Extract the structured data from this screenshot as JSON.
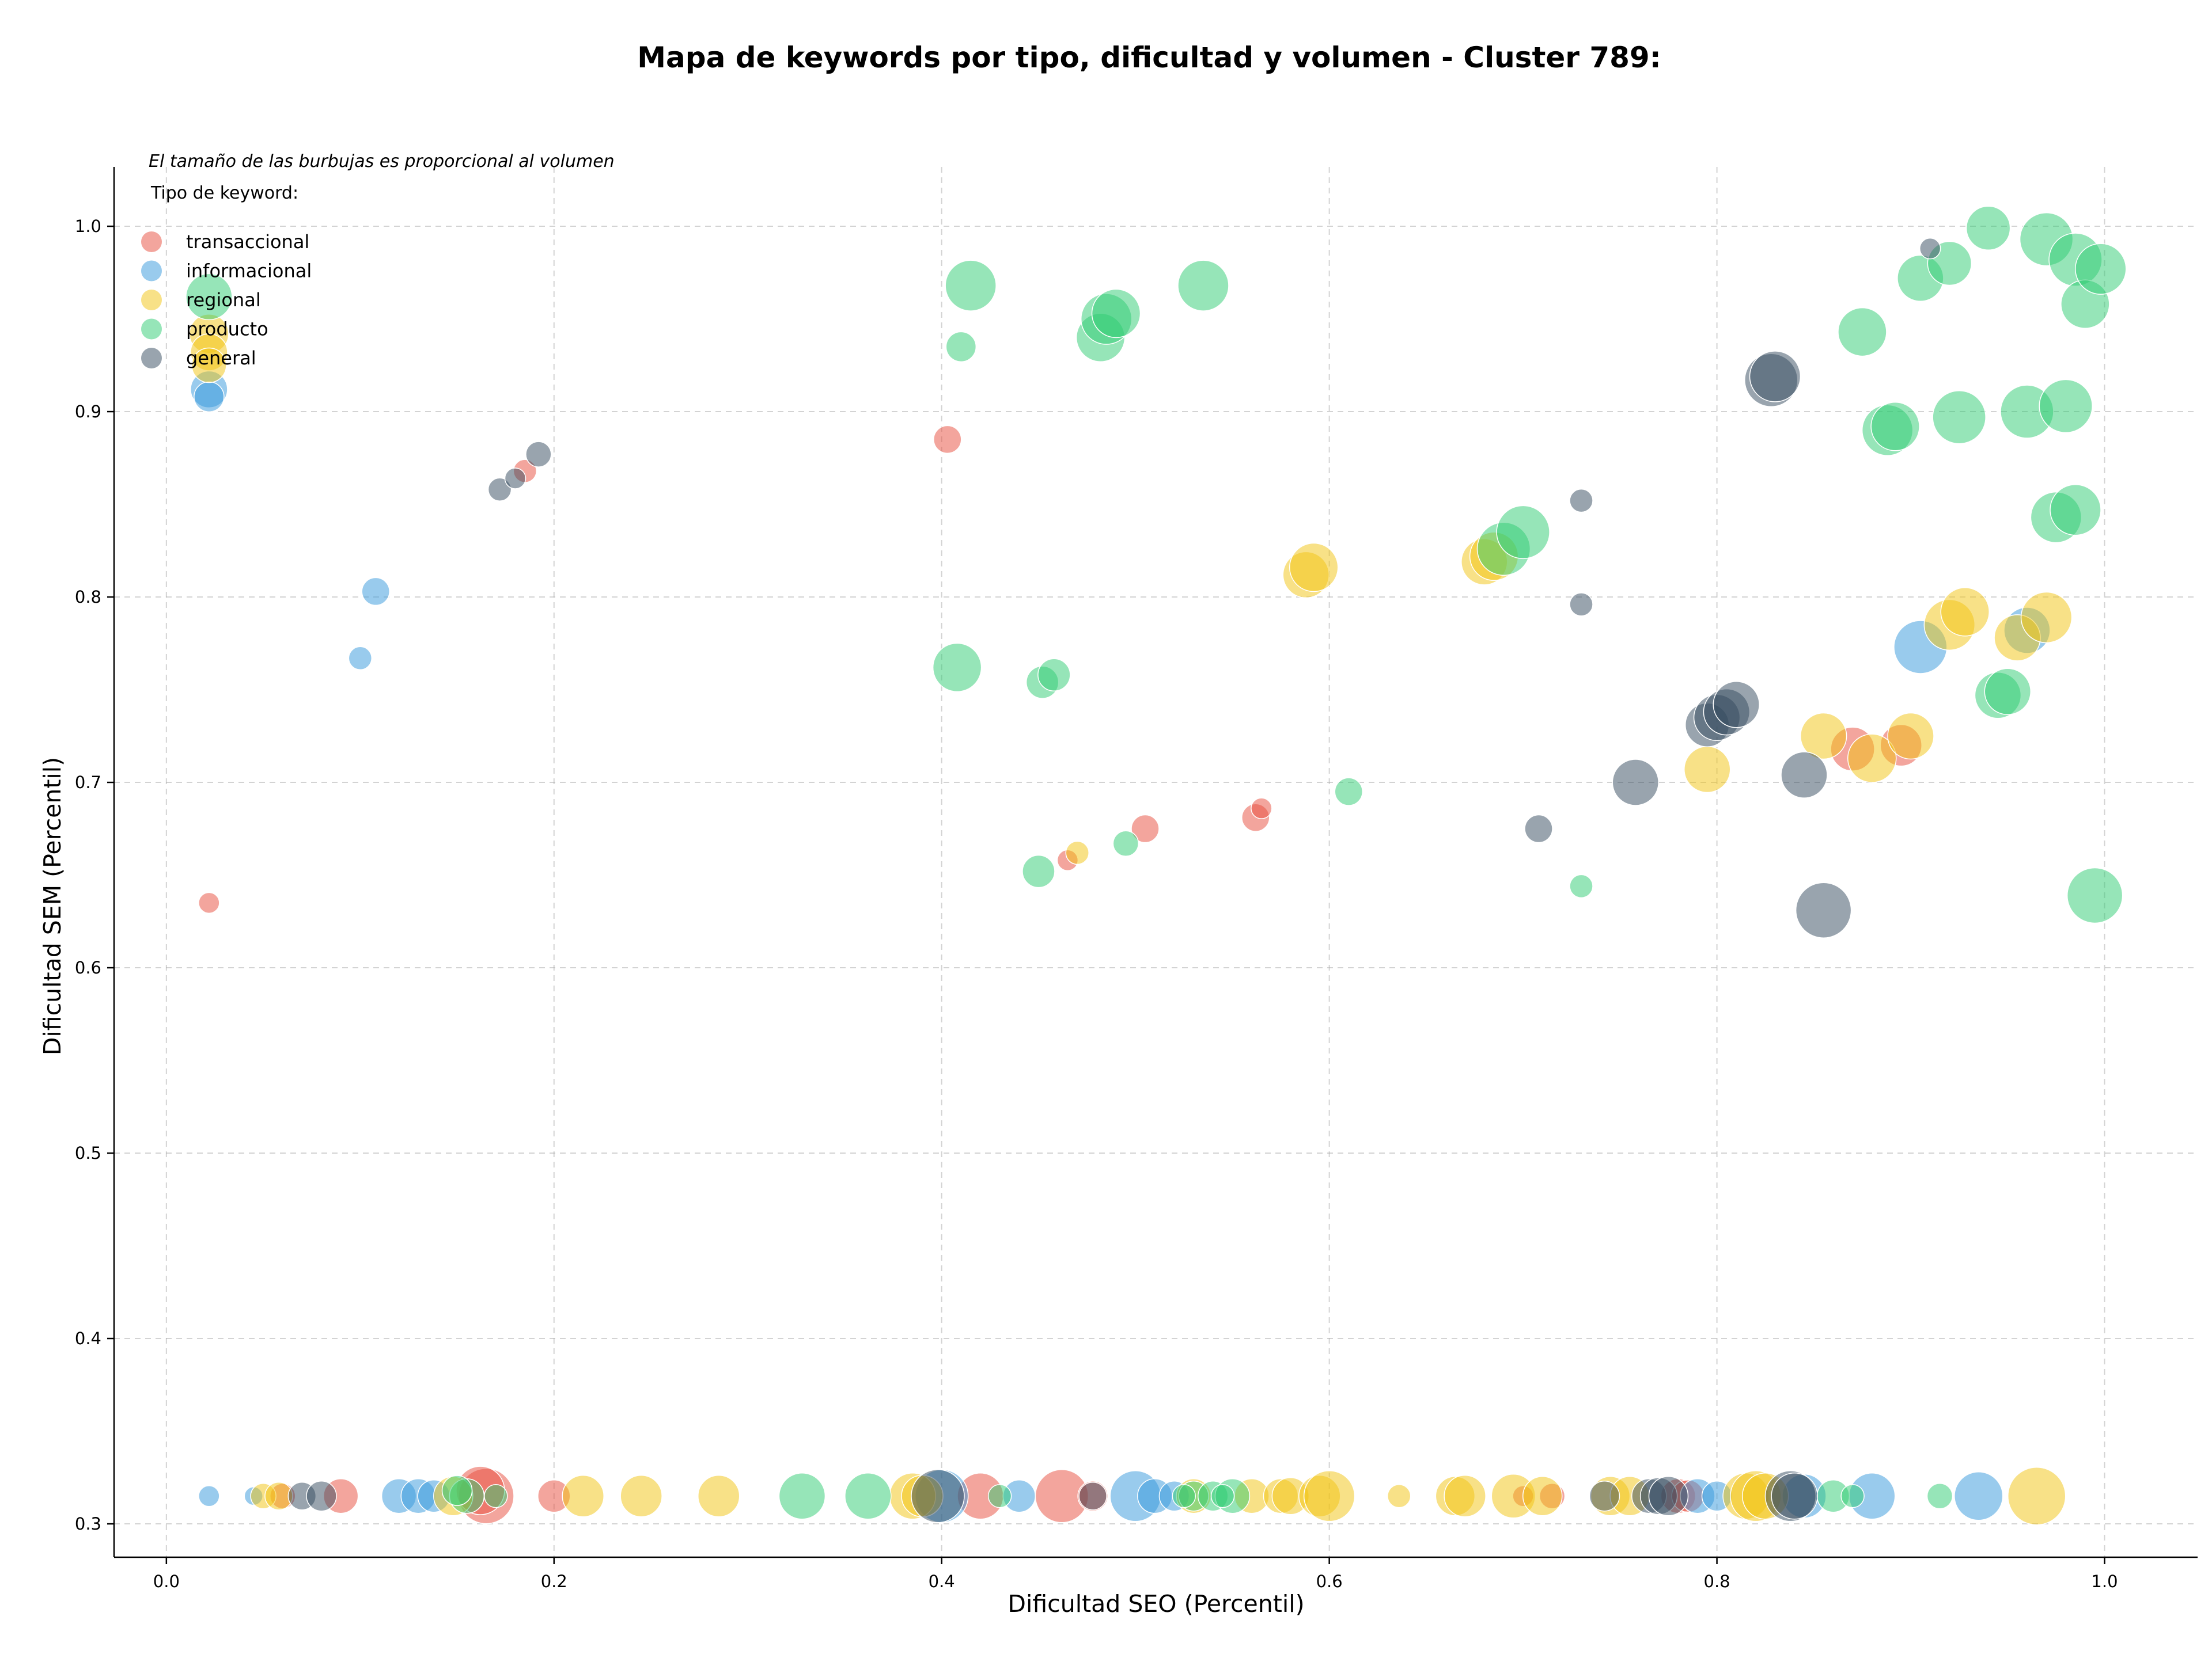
{
  "chart_data": {
    "type": "scatter",
    "title": "Mapa de keywords por tipo, dificultad y volumen - Cluster 789:",
    "note": "El tamaño de las burbujas es proporcional al volumen",
    "xlabel": "Dificultad SEO (Percentil)",
    "ylabel": "Dificultad SEM (Percentil)",
    "xlim": [
      -0.027,
      1.048
    ],
    "ylim": [
      0.282,
      1.032
    ],
    "xticks": [
      "0.0",
      "0.2",
      "0.4",
      "0.6",
      "0.8",
      "1.0"
    ],
    "yticks": [
      "0.3",
      "0.4",
      "0.5",
      "0.6",
      "0.7",
      "0.8",
      "0.9",
      "1.0"
    ],
    "grid": true,
    "legend": {
      "title": "Tipo de keyword:",
      "position": "top-left"
    },
    "series": [
      {
        "name": "transaccional",
        "color": "#e74c3c",
        "points": [
          [
            0.022,
            0.635,
            18
          ],
          [
            0.165,
            0.315,
            48
          ],
          [
            0.162,
            0.318,
            42
          ],
          [
            0.09,
            0.315,
            30
          ],
          [
            0.2,
            0.315,
            28
          ],
          [
            0.185,
            0.868,
            20
          ],
          [
            0.403,
            0.885,
            24
          ],
          [
            0.42,
            0.315,
            40
          ],
          [
            0.462,
            0.315,
            46
          ],
          [
            0.478,
            0.315,
            26
          ],
          [
            0.465,
            0.658,
            18
          ],
          [
            0.505,
            0.675,
            24
          ],
          [
            0.562,
            0.681,
            24
          ],
          [
            0.565,
            0.686,
            18
          ],
          [
            0.715,
            0.315,
            22
          ],
          [
            0.78,
            0.315,
            30
          ],
          [
            0.785,
            0.315,
            28
          ],
          [
            0.87,
            0.718,
            38
          ],
          [
            0.895,
            0.72,
            36
          ],
          [
            0.06,
            0.315,
            22
          ],
          [
            0.7,
            0.315,
            18
          ]
        ]
      },
      {
        "name": "informacional",
        "color": "#3498db",
        "points": [
          [
            0.022,
            0.315,
            18
          ],
          [
            0.022,
            0.912,
            32
          ],
          [
            0.022,
            0.908,
            26
          ],
          [
            0.1,
            0.767,
            20
          ],
          [
            0.108,
            0.803,
            24
          ],
          [
            0.12,
            0.315,
            30
          ],
          [
            0.13,
            0.315,
            30
          ],
          [
            0.138,
            0.315,
            28
          ],
          [
            0.045,
            0.315,
            16
          ],
          [
            0.4,
            0.315,
            46
          ],
          [
            0.44,
            0.315,
            28
          ],
          [
            0.5,
            0.315,
            44
          ],
          [
            0.51,
            0.315,
            30
          ],
          [
            0.52,
            0.315,
            26
          ],
          [
            0.79,
            0.315,
            30
          ],
          [
            0.8,
            0.315,
            26
          ],
          [
            0.845,
            0.315,
            38
          ],
          [
            0.88,
            0.315,
            40
          ],
          [
            0.905,
            0.773,
            46
          ],
          [
            0.935,
            0.315,
            42
          ],
          [
            0.96,
            0.782,
            40
          ]
        ]
      },
      {
        "name": "regional",
        "color": "#f1c40f",
        "points": [
          [
            0.022,
            0.942,
            34
          ],
          [
            0.022,
            0.932,
            32
          ],
          [
            0.022,
            0.925,
            30
          ],
          [
            0.05,
            0.315,
            22
          ],
          [
            0.058,
            0.315,
            24
          ],
          [
            0.148,
            0.315,
            34
          ],
          [
            0.215,
            0.315,
            36
          ],
          [
            0.245,
            0.315,
            36
          ],
          [
            0.285,
            0.315,
            36
          ],
          [
            0.385,
            0.315,
            40
          ],
          [
            0.39,
            0.315,
            36
          ],
          [
            0.47,
            0.662,
            20
          ],
          [
            0.53,
            0.315,
            30
          ],
          [
            0.56,
            0.315,
            30
          ],
          [
            0.575,
            0.315,
            30
          ],
          [
            0.58,
            0.315,
            32
          ],
          [
            0.595,
            0.315,
            36
          ],
          [
            0.6,
            0.315,
            44
          ],
          [
            0.588,
            0.812,
            40
          ],
          [
            0.592,
            0.816,
            42
          ],
          [
            0.636,
            0.315,
            20
          ],
          [
            0.665,
            0.315,
            34
          ],
          [
            0.67,
            0.315,
            36
          ],
          [
            0.695,
            0.315,
            38
          ],
          [
            0.71,
            0.315,
            34
          ],
          [
            0.68,
            0.819,
            40
          ],
          [
            0.685,
            0.822,
            42
          ],
          [
            0.745,
            0.315,
            34
          ],
          [
            0.755,
            0.315,
            34
          ],
          [
            0.795,
            0.707,
            40
          ],
          [
            0.815,
            0.315,
            40
          ],
          [
            0.82,
            0.315,
            44
          ],
          [
            0.825,
            0.315,
            40
          ],
          [
            0.855,
            0.725,
            40
          ],
          [
            0.88,
            0.713,
            42
          ],
          [
            0.9,
            0.725,
            40
          ],
          [
            0.92,
            0.785,
            44
          ],
          [
            0.928,
            0.792,
            42
          ],
          [
            0.955,
            0.778,
            40
          ],
          [
            0.965,
            0.315,
            50
          ],
          [
            0.97,
            0.789,
            44
          ]
        ]
      },
      {
        "name": "producto",
        "color": "#2ecc71",
        "points": [
          [
            0.022,
            0.962,
            40
          ],
          [
            0.155,
            0.315,
            30
          ],
          [
            0.15,
            0.318,
            26
          ],
          [
            0.17,
            0.315,
            20
          ],
          [
            0.328,
            0.315,
            40
          ],
          [
            0.362,
            0.315,
            40
          ],
          [
            0.408,
            0.762,
            42
          ],
          [
            0.41,
            0.935,
            26
          ],
          [
            0.415,
            0.968,
            44
          ],
          [
            0.43,
            0.315,
            20
          ],
          [
            0.45,
            0.652,
            28
          ],
          [
            0.452,
            0.754,
            28
          ],
          [
            0.458,
            0.758,
            28
          ],
          [
            0.482,
            0.94,
            42
          ],
          [
            0.485,
            0.95,
            44
          ],
          [
            0.49,
            0.953,
            42
          ],
          [
            0.495,
            0.667,
            22
          ],
          [
            0.53,
            0.315,
            26
          ],
          [
            0.535,
            0.968,
            44
          ],
          [
            0.54,
            0.315,
            26
          ],
          [
            0.55,
            0.315,
            30
          ],
          [
            0.61,
            0.695,
            24
          ],
          [
            0.69,
            0.826,
            46
          ],
          [
            0.7,
            0.835,
            46
          ],
          [
            0.73,
            0.644,
            20
          ],
          [
            0.86,
            0.315,
            28
          ],
          [
            0.87,
            0.315,
            20
          ],
          [
            0.875,
            0.943,
            42
          ],
          [
            0.888,
            0.89,
            44
          ],
          [
            0.892,
            0.892,
            42
          ],
          [
            0.905,
            0.972,
            40
          ],
          [
            0.92,
            0.98,
            38
          ],
          [
            0.925,
            0.897,
            46
          ],
          [
            0.94,
            0.999,
            38
          ],
          [
            0.945,
            0.747,
            40
          ],
          [
            0.95,
            0.749,
            40
          ],
          [
            0.96,
            0.9,
            46
          ],
          [
            0.97,
            0.993,
            46
          ],
          [
            0.975,
            0.843,
            44
          ],
          [
            0.98,
            0.903,
            46
          ],
          [
            0.985,
            0.847,
            44
          ],
          [
            0.985,
            0.982,
            46
          ],
          [
            0.99,
            0.958,
            42
          ],
          [
            0.998,
            0.977,
            44
          ],
          [
            0.995,
            0.639,
            48
          ],
          [
            0.915,
            0.315,
            22
          ],
          [
            0.525,
            0.315,
            20
          ],
          [
            0.545,
            0.315,
            20
          ]
        ]
      },
      {
        "name": "general",
        "color": "#34495e",
        "points": [
          [
            0.07,
            0.315,
            24
          ],
          [
            0.08,
            0.315,
            26
          ],
          [
            0.172,
            0.858,
            20
          ],
          [
            0.18,
            0.864,
            18
          ],
          [
            0.192,
            0.877,
            22
          ],
          [
            0.398,
            0.315,
            46
          ],
          [
            0.478,
            0.315,
            24
          ],
          [
            0.708,
            0.675,
            24
          ],
          [
            0.73,
            0.852,
            20
          ],
          [
            0.73,
            0.796,
            20
          ],
          [
            0.742,
            0.315,
            26
          ],
          [
            0.758,
            0.7,
            40
          ],
          [
            0.765,
            0.315,
            30
          ],
          [
            0.77,
            0.315,
            32
          ],
          [
            0.775,
            0.315,
            34
          ],
          [
            0.795,
            0.731,
            38
          ],
          [
            0.8,
            0.735,
            40
          ],
          [
            0.805,
            0.738,
            40
          ],
          [
            0.81,
            0.742,
            40
          ],
          [
            0.828,
            0.917,
            46
          ],
          [
            0.83,
            0.919,
            44
          ],
          [
            0.838,
            0.315,
            44
          ],
          [
            0.84,
            0.315,
            40
          ],
          [
            0.845,
            0.704,
            40
          ],
          [
            0.855,
            0.631,
            48
          ],
          [
            0.91,
            0.988,
            18
          ]
        ]
      }
    ]
  }
}
